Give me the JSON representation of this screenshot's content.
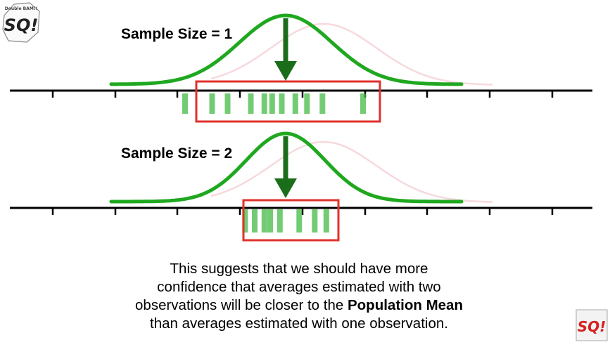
{
  "panels": [
    {
      "label": "Sample Size = 1",
      "sample_means": [
        -2.6,
        -1.9,
        -1.5,
        -0.9,
        -0.55,
        -0.35,
        -0.1,
        0.25,
        0.55,
        0.95,
        2.0
      ],
      "population_mean": 0
    },
    {
      "label": "Sample Size = 2",
      "sample_means": [
        -1.05,
        -0.8,
        -0.55,
        -0.4,
        -0.15,
        0.35,
        0.75,
        1.05
      ],
      "population_mean": 0
    }
  ],
  "caption": {
    "line1": "This suggests that we should have more",
    "line2": "confidence that averages estimated with two",
    "line3_pre": "observations will be closer to the ",
    "line3_bold": "Population Mean",
    "line4": "than averages estimated with one observation."
  },
  "logos": {
    "top_left": {
      "text": "SQ!",
      "small": "Double BAM!!"
    },
    "bottom_right": {
      "text": "SQ!"
    }
  },
  "colors": {
    "curve": "#1fa81f",
    "arrow": "#1a6e1a",
    "bars": "#3db83d",
    "box": "#e0312b",
    "axis": "#000000",
    "ghost": "#f4c9cf"
  }
}
